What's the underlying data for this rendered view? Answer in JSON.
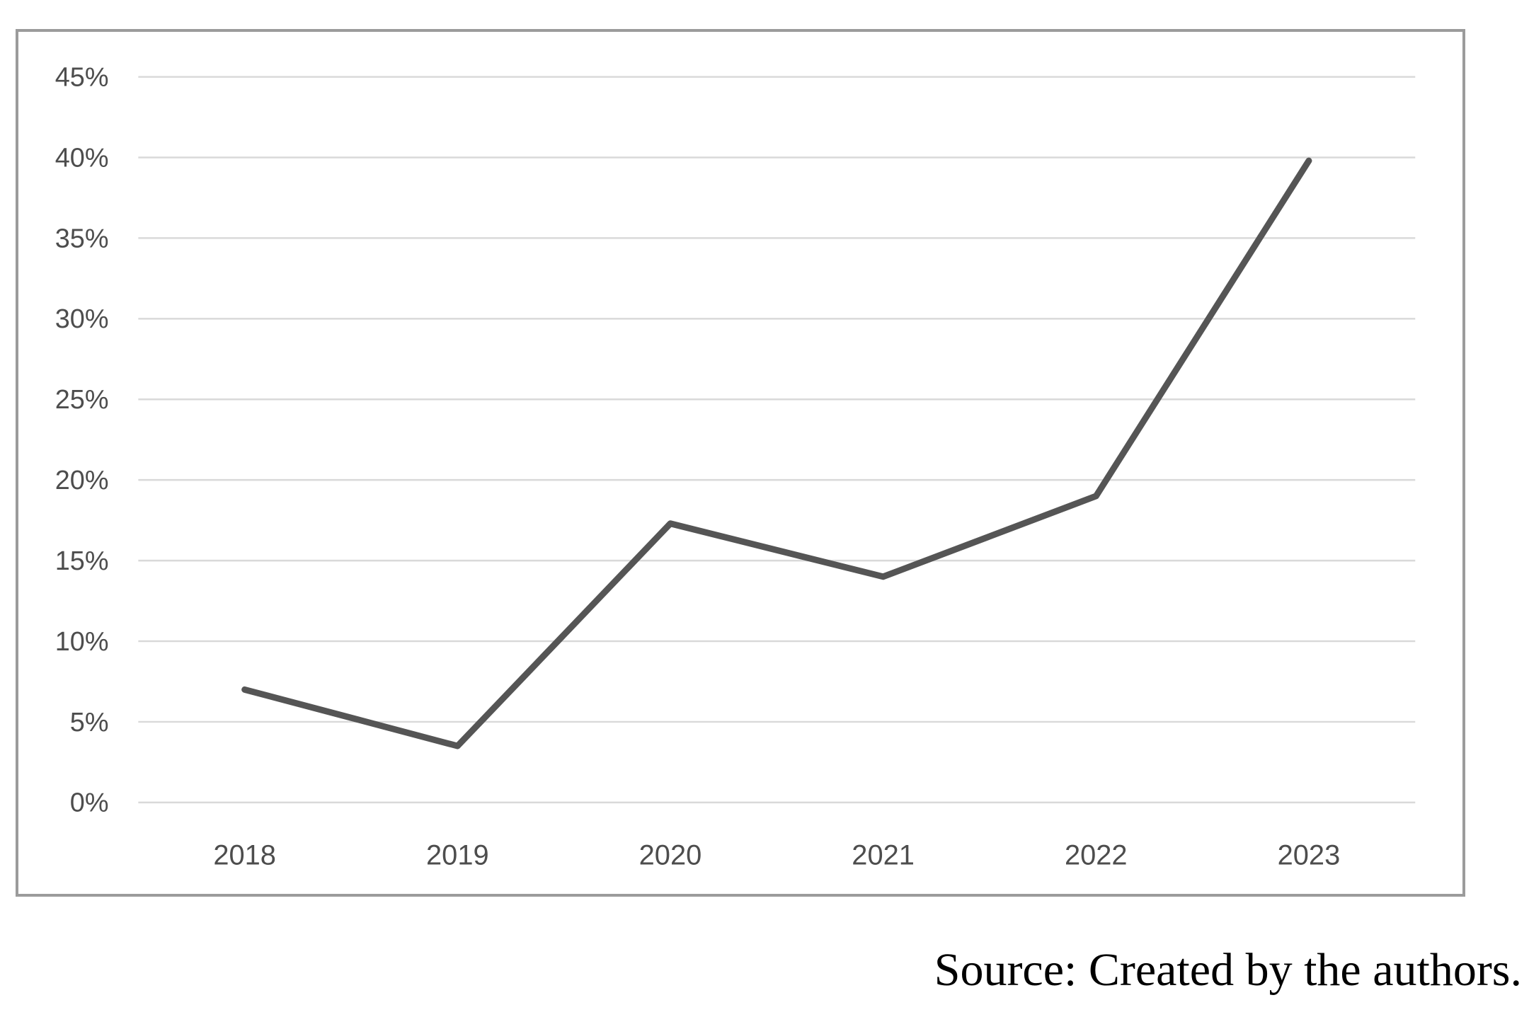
{
  "figure": {
    "caption": "Source: Created by the authors."
  },
  "chart_data": {
    "type": "line",
    "title": "",
    "xlabel": "",
    "ylabel": "",
    "categories": [
      "2018",
      "2019",
      "2020",
      "2021",
      "2022",
      "2023"
    ],
    "values": [
      7,
      3.5,
      17.3,
      14,
      19,
      39.8
    ],
    "unit": "%",
    "ylim": [
      0,
      45
    ],
    "ytick_step": 5,
    "ytick_labels": [
      "0%",
      "5%",
      "10%",
      "15%",
      "20%",
      "25%",
      "30%",
      "35%",
      "40%",
      "45%"
    ],
    "grid": "horizontal",
    "legend": "none",
    "colors": {
      "line": "#555555",
      "gridline": "#d9d9d9",
      "tick_text": "#4d4d4d",
      "box_border": "#9b9b9b"
    }
  }
}
